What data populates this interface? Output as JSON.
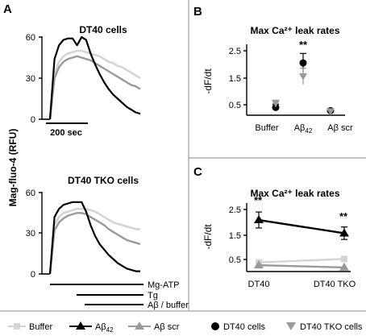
{
  "colors": {
    "buffer": "#d4d4d4",
    "abeta": "#000000",
    "abeta_scr": "#9a9a9a"
  },
  "panel_a": {
    "letter": "A",
    "ylabel": "Mag-fluo-4 (RFU)",
    "scale_bar_label": "200 sec",
    "top": {
      "title": "DT40 cells",
      "yticks": [
        "60",
        "30",
        "0"
      ],
      "chart_data": {
        "type": "line",
        "title": "DT40 cells",
        "ylabel": "Mag-fluo-4 (RFU)",
        "ylim": [
          0,
          60
        ],
        "x": [
          0,
          0.05,
          0.1,
          0.15,
          0.2,
          0.25,
          0.3,
          0.35,
          0.4,
          0.45,
          0.5,
          0.55,
          0.6,
          0.65,
          0.7,
          0.75,
          0.8,
          0.85,
          0.9,
          0.95,
          1.0
        ],
        "series": [
          {
            "name": "Buffer",
            "values": [
              0,
              33,
              42,
              46,
              48,
              49,
              50,
              50,
              49,
              48,
              47,
              46,
              44,
              42,
              41,
              39,
              38,
              36,
              34,
              32,
              30
            ]
          },
          {
            "name": "Aβ42",
            "values": [
              0,
              44,
              54,
              58,
              59,
              59,
              54,
              60,
              58,
              48,
              40,
              33,
              27,
              22,
              18,
              15,
              12,
              9,
              7,
              5,
              4
            ]
          },
          {
            "name": "Aβ scr",
            "values": [
              0,
              30,
              38,
              42,
              44,
              45,
              46,
              45,
              44,
              43,
              41,
              39,
              37,
              35,
              33,
              31,
              29,
              27,
              25,
              24,
              22
            ]
          }
        ]
      }
    },
    "bottom": {
      "title": "DT40 TKO cells",
      "yticks": [
        "60",
        "30",
        "0"
      ],
      "chart_data": {
        "type": "line",
        "title": "DT40 TKO cells",
        "ylabel": "Mag-fluo-4 (RFU)",
        "ylim": [
          0,
          60
        ],
        "x": [
          0,
          0.05,
          0.1,
          0.15,
          0.2,
          0.25,
          0.3,
          0.35,
          0.4,
          0.45,
          0.5,
          0.55,
          0.6,
          0.65,
          0.7,
          0.75,
          0.8,
          0.85,
          0.9,
          0.95,
          1.0
        ],
        "series": [
          {
            "name": "Buffer",
            "values": [
              0,
              36,
              42,
              45,
              46,
              47,
              48,
              48,
              48,
              47,
              46,
              44,
              42,
              40,
              38,
              37,
              36,
              35,
              34,
              33,
              33
            ]
          },
          {
            "name": "Aβ42",
            "values": [
              0,
              42,
              48,
              51,
              52,
              53,
              53,
              53,
              46,
              36,
              28,
              22,
              18,
              14,
              11,
              8,
              6,
              4,
              3,
              2,
              2
            ]
          },
          {
            "name": "Aβ scr",
            "values": [
              0,
              32,
              38,
              41,
              43,
              44,
              45,
              45,
              44,
              42,
              40,
              38,
              36,
              33,
              31,
              29,
              27,
              25,
              24,
              23,
              22
            ]
          }
        ]
      }
    },
    "protocol": [
      "Mg-ATP",
      "Tg",
      "Aβ / buffer"
    ]
  },
  "panel_b": {
    "letter": "B",
    "chart_data": {
      "type": "scatter",
      "title": "Max Ca²⁺ leak rates",
      "ylabel": "-dF/dt",
      "categories": [
        "Buffer",
        "Aβ42",
        "Aβ scr"
      ],
      "ylim": [
        0,
        3
      ],
      "yticks": [
        "2.5",
        "1.5",
        "0.5"
      ],
      "series": [
        {
          "name": "DT40 cells",
          "values": [
            0.4,
            2.05,
            0.28
          ],
          "errors": [
            0.12,
            0.35,
            0.05
          ]
        },
        {
          "name": "DT40 TKO cells",
          "values": [
            0.55,
            1.55,
            0.25
          ],
          "errors": [
            0.12,
            0.3,
            0.05
          ]
        }
      ],
      "annotation": "**"
    }
  },
  "panel_c": {
    "letter": "C",
    "chart_data": {
      "type": "line",
      "title": "Max Ca²⁺ leak rates",
      "ylabel": "-dF/dt",
      "categories": [
        "DT40",
        "DT40 TKO"
      ],
      "ylim": [
        0,
        3
      ],
      "yticks": [
        "2.5",
        "1.5",
        "0.5"
      ],
      "series": [
        {
          "name": "Buffer",
          "values": [
            0.38,
            0.52
          ]
        },
        {
          "name": "Aβ42",
          "values": [
            2.08,
            1.55
          ],
          "errors": [
            0.32,
            0.25
          ]
        },
        {
          "name": "Aβ scr",
          "values": [
            0.27,
            0.18
          ]
        }
      ],
      "annotations": [
        "**",
        "**"
      ]
    }
  },
  "legend": [
    {
      "label": "Buffer",
      "marker": "square",
      "color": "#d4d4d4"
    },
    {
      "label": "Aβ42",
      "marker": "triangle",
      "color": "#000000"
    },
    {
      "label": "Aβ scr",
      "marker": "triangle",
      "color": "#9a9a9a"
    },
    {
      "label": "DT40 cells",
      "marker": "circle",
      "color": "#000000"
    },
    {
      "label": "DT40 TKO cells",
      "marker": "triangle-down",
      "color": "#9a9a9a"
    }
  ]
}
